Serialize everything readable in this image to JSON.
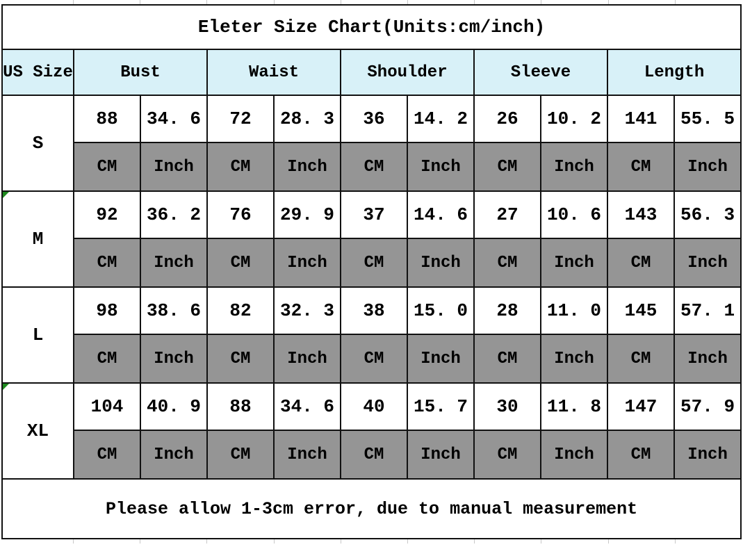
{
  "title": "Eleter Size Chart(Units:cm/inch)",
  "footer_note": "Please allow 1-3cm error, due to manual measurement",
  "header": {
    "size_col": "US Size",
    "measures": [
      "Bust",
      "Waist",
      "Shoulder",
      "Sleeve",
      "Length"
    ]
  },
  "units": [
    "CM",
    "Inch"
  ],
  "rows": [
    {
      "size": "S",
      "values": [
        "88",
        "34. 6",
        "72",
        "28. 3",
        "36",
        "14. 2",
        "26",
        "10. 2",
        "141",
        "55. 5"
      ]
    },
    {
      "size": "M",
      "values": [
        "92",
        "36. 2",
        "76",
        "29. 9",
        "37",
        "14. 6",
        "27",
        "10. 6",
        "143",
        "56. 3"
      ]
    },
    {
      "size": "L",
      "values": [
        "98",
        "38. 6",
        "82",
        "32. 3",
        "38",
        "15. 0",
        "28",
        "11. 0",
        "145",
        "57. 1"
      ]
    },
    {
      "size": "XL",
      "values": [
        "104",
        "40. 9",
        "88",
        "34. 6",
        "40",
        "15. 7",
        "30",
        "11. 8",
        "147",
        "57. 9"
      ]
    }
  ],
  "colors": {
    "header_bg": "#d8f1f8",
    "unit_row_bg": "#959595",
    "border": "#111111",
    "marker_green": "#1e8a1e",
    "text": "#000000"
  },
  "chart_data": {
    "type": "table",
    "title": "Eleter Size Chart(Units:cm/inch)",
    "columns": [
      "US Size",
      "Bust CM",
      "Bust Inch",
      "Waist CM",
      "Waist Inch",
      "Shoulder CM",
      "Shoulder Inch",
      "Sleeve CM",
      "Sleeve Inch",
      "Length CM",
      "Length Inch"
    ],
    "rows": [
      [
        "S",
        88,
        34.6,
        72,
        28.3,
        36,
        14.2,
        26,
        10.2,
        141,
        55.5
      ],
      [
        "M",
        92,
        36.2,
        76,
        29.9,
        37,
        14.6,
        27,
        10.6,
        143,
        56.3
      ],
      [
        "L",
        98,
        38.6,
        82,
        32.3,
        38,
        15.0,
        28,
        11.0,
        145,
        57.1
      ],
      [
        "XL",
        104,
        40.9,
        88,
        34.6,
        40,
        15.7,
        30,
        11.8,
        147,
        57.9
      ]
    ],
    "note": "Please allow 1-3cm error, due to manual measurement"
  }
}
